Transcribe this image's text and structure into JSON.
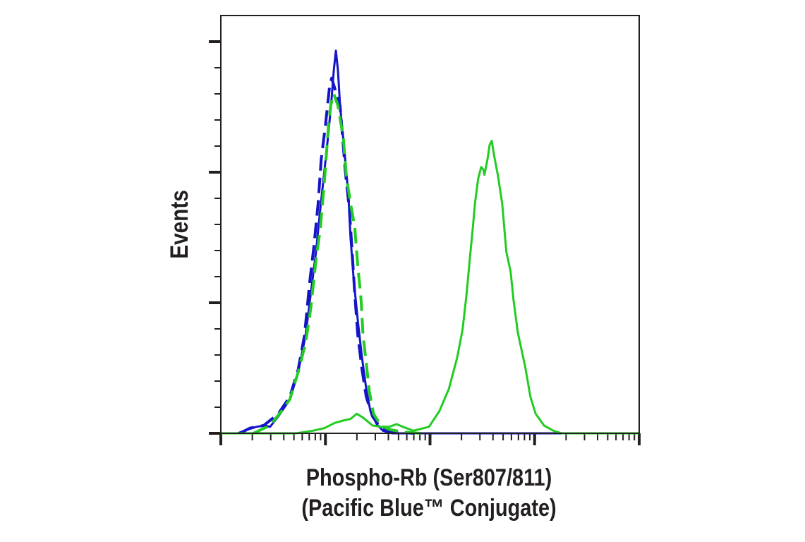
{
  "chart_data": {
    "type": "line",
    "title": "",
    "xlabel": "Phospho-Rb (Ser807/811)",
    "xlabel_line2": "(Pacific Blue™ Conjugate)",
    "ylabel": "Events",
    "xscale": "log (decades)",
    "xlim": [
      0,
      4
    ],
    "ylim": [
      0,
      3.2
    ],
    "x_major_ticks": [
      0,
      1,
      2,
      3,
      4
    ],
    "y_major_ticks": [
      0,
      1,
      2,
      3
    ],
    "grid": false,
    "legend": "none",
    "series": [
      {
        "name": "blue-solid",
        "color": "#1414c8",
        "dash": false,
        "points": [
          [
            0,
            0
          ],
          [
            0.16,
            0
          ],
          [
            0.26,
            0.03
          ],
          [
            0.34,
            0.05
          ],
          [
            0.42,
            0.06
          ],
          [
            0.47,
            0.05
          ],
          [
            0.55,
            0.13
          ],
          [
            0.66,
            0.26
          ],
          [
            0.74,
            0.47
          ],
          [
            0.81,
            0.75
          ],
          [
            0.86,
            1.07
          ],
          [
            0.91,
            1.39
          ],
          [
            0.95,
            1.71
          ],
          [
            0.99,
            2.01
          ],
          [
            1.03,
            2.31
          ],
          [
            1.06,
            2.57
          ],
          [
            1.08,
            2.78
          ],
          [
            1.1,
            2.93
          ],
          [
            1.12,
            2.78
          ],
          [
            1.14,
            2.51
          ],
          [
            1.18,
            2.18
          ],
          [
            1.22,
            1.82
          ],
          [
            1.24,
            1.5
          ],
          [
            1.27,
            1.18
          ],
          [
            1.31,
            0.86
          ],
          [
            1.35,
            0.58
          ],
          [
            1.39,
            0.34
          ],
          [
            1.43,
            0.17
          ],
          [
            1.49,
            0.07
          ],
          [
            1.55,
            0.02
          ],
          [
            1.64,
            0
          ],
          [
            1.88,
            0
          ],
          [
            4,
            0
          ]
        ]
      },
      {
        "name": "blue-dashed",
        "color": "#1414c8",
        "dash": true,
        "points": [
          [
            0.18,
            0
          ],
          [
            0.28,
            0.04
          ],
          [
            0.41,
            0.06
          ],
          [
            0.55,
            0.15
          ],
          [
            0.66,
            0.28
          ],
          [
            0.74,
            0.49
          ],
          [
            0.8,
            0.75
          ],
          [
            0.85,
            1.16
          ],
          [
            0.89,
            1.43
          ],
          [
            0.93,
            1.76
          ],
          [
            0.96,
            2.1
          ],
          [
            1.0,
            2.36
          ],
          [
            1.04,
            2.66
          ],
          [
            1.06,
            2.72
          ],
          [
            1.14,
            2.51
          ],
          [
            1.16,
            2.31
          ],
          [
            1.19,
            2.01
          ],
          [
            1.23,
            1.71
          ],
          [
            1.26,
            1.33
          ],
          [
            1.28,
            1.07
          ],
          [
            1.31,
            0.75
          ],
          [
            1.35,
            0.49
          ],
          [
            1.39,
            0.28
          ],
          [
            1.45,
            0.13
          ],
          [
            1.53,
            0.04
          ],
          [
            1.64,
            0.01
          ],
          [
            1.85,
            0
          ]
        ]
      },
      {
        "name": "green-dashed",
        "color": "#22cc22",
        "dash": true,
        "points": [
          [
            0.31,
            0
          ],
          [
            0.47,
            0.06
          ],
          [
            0.58,
            0.17
          ],
          [
            0.66,
            0.26
          ],
          [
            0.74,
            0.47
          ],
          [
            0.81,
            0.69
          ],
          [
            0.86,
            0.96
          ],
          [
            0.91,
            1.33
          ],
          [
            0.95,
            1.56
          ],
          [
            0.99,
            1.93
          ],
          [
            1.03,
            2.36
          ],
          [
            1.05,
            2.51
          ],
          [
            1.08,
            2.6
          ],
          [
            1.12,
            2.51
          ],
          [
            1.17,
            2.27
          ],
          [
            1.2,
            1.97
          ],
          [
            1.24,
            1.76
          ],
          [
            1.28,
            1.58
          ],
          [
            1.31,
            1.28
          ],
          [
            1.34,
            1.03
          ],
          [
            1.36,
            0.75
          ],
          [
            1.39,
            0.54
          ],
          [
            1.42,
            0.32
          ],
          [
            1.46,
            0.15
          ],
          [
            1.53,
            0.06
          ],
          [
            1.61,
            0.03
          ],
          [
            1.74,
            0.01
          ],
          [
            1.91,
            0
          ]
        ]
      },
      {
        "name": "green-solid",
        "color": "#22cc22",
        "dash": false,
        "points": [
          [
            0,
            0
          ],
          [
            0.72,
            0
          ],
          [
            0.88,
            0.02
          ],
          [
            0.99,
            0.04
          ],
          [
            1.09,
            0.08
          ],
          [
            1.18,
            0.1
          ],
          [
            1.24,
            0.11
          ],
          [
            1.3,
            0.15
          ],
          [
            1.36,
            0.12
          ],
          [
            1.45,
            0.06
          ],
          [
            1.53,
            0.05
          ],
          [
            1.61,
            0.05
          ],
          [
            1.68,
            0.07
          ],
          [
            1.74,
            0.05
          ],
          [
            1.84,
            0.02
          ],
          [
            1.99,
            0.05
          ],
          [
            2.09,
            0.17
          ],
          [
            2.18,
            0.34
          ],
          [
            2.26,
            0.58
          ],
          [
            2.31,
            0.79
          ],
          [
            2.35,
            1.07
          ],
          [
            2.38,
            1.33
          ],
          [
            2.41,
            1.58
          ],
          [
            2.43,
            1.76
          ],
          [
            2.46,
            1.95
          ],
          [
            2.49,
            2.04
          ],
          [
            2.51,
            2.02
          ],
          [
            2.52,
            1.98
          ],
          [
            2.55,
            2.1
          ],
          [
            2.57,
            2.21
          ],
          [
            2.59,
            2.24
          ],
          [
            2.61,
            2.14
          ],
          [
            2.65,
            1.97
          ],
          [
            2.69,
            1.76
          ],
          [
            2.73,
            1.39
          ],
          [
            2.77,
            1.24
          ],
          [
            2.8,
            1.01
          ],
          [
            2.84,
            0.77
          ],
          [
            2.91,
            0.51
          ],
          [
            2.96,
            0.28
          ],
          [
            3.01,
            0.15
          ],
          [
            3.09,
            0.06
          ],
          [
            3.18,
            0.02
          ],
          [
            3.26,
            0
          ],
          [
            4,
            0
          ]
        ]
      }
    ]
  }
}
